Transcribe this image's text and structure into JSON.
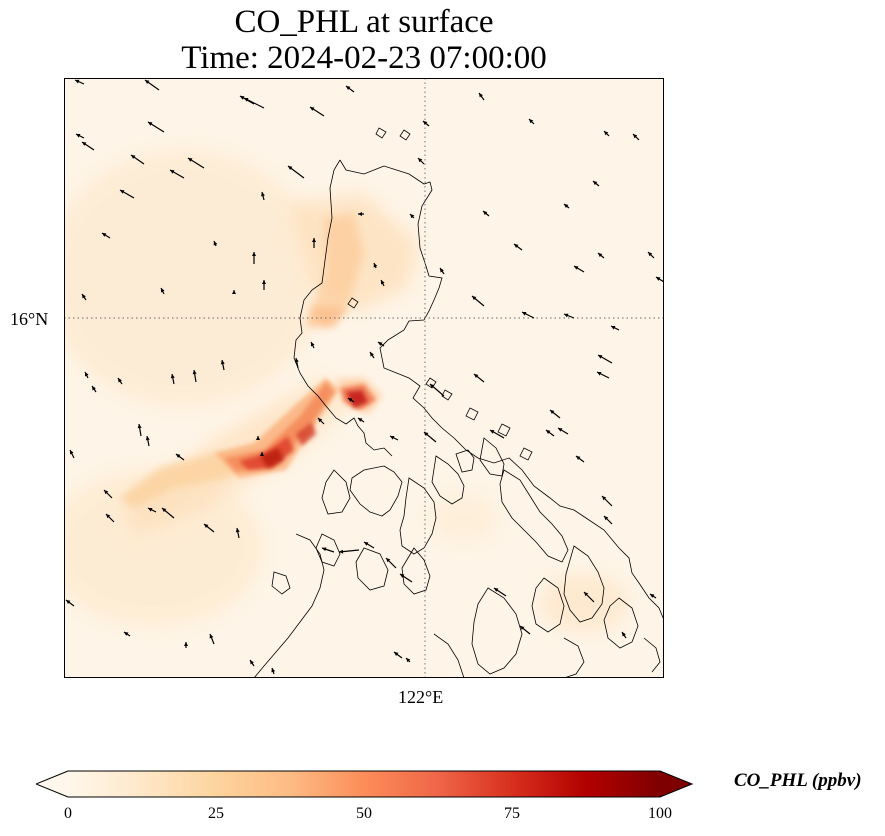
{
  "title": {
    "line1": "CO_PHL at surface",
    "line2": "Time: 2024-02-23 07:00:00"
  },
  "map": {
    "lat_tick_label": "16°N",
    "lon_tick_label": "122°E",
    "gridlines": "dotted",
    "wind_vectors": "shown"
  },
  "colorbar": {
    "label": "CO_PHL (ppbv)",
    "min": 0,
    "max": 100,
    "ticks": [
      "0",
      "25",
      "50",
      "75",
      "100"
    ],
    "colormap": "OrRd",
    "colors": [
      "#fff7ec",
      "#fee8c8",
      "#fdd49e",
      "#fdbb84",
      "#fc8d59",
      "#ef6548",
      "#d7301f",
      "#b30000",
      "#7f0000"
    ],
    "extend": "both"
  }
}
